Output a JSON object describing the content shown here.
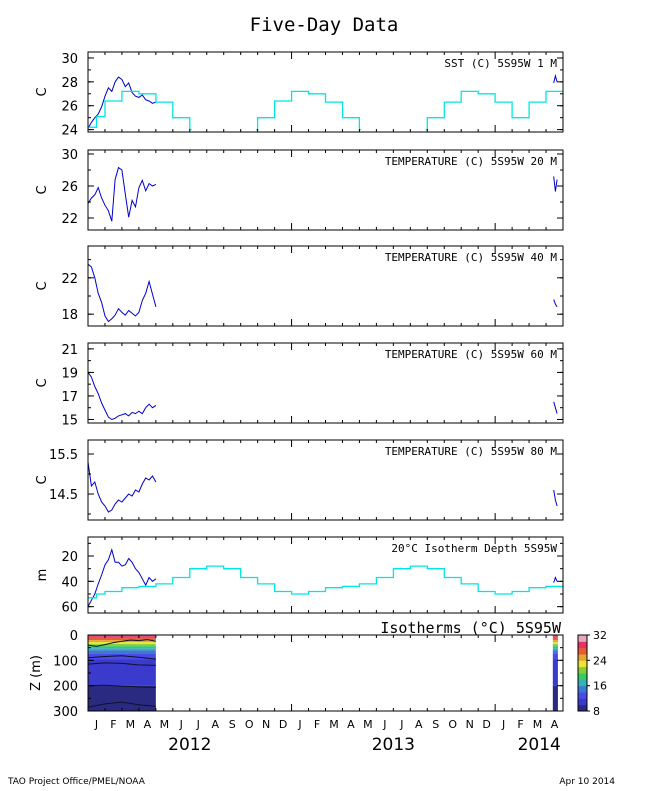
{
  "title": "Five-Day Data",
  "footer_left": "TAO Project Office/PMEL/NOAA",
  "footer_right": "Apr 10 2014",
  "colors": {
    "obs": "#0000cc",
    "clim": "#00e5e5"
  },
  "months": [
    "J",
    "F",
    "M",
    "A",
    "M",
    "J",
    "J",
    "A",
    "S",
    "O",
    "N",
    "D",
    "J",
    "F",
    "M",
    "A",
    "M",
    "J",
    "J",
    "A",
    "S",
    "O",
    "N",
    "D",
    "J",
    "F",
    "M",
    "A"
  ],
  "years": [
    "2012",
    "2013",
    "2014"
  ],
  "chart_data": [
    {
      "type": "line",
      "label": "SST (C)  5S95W  1 M",
      "ylabel": "C",
      "yticks": [
        24,
        26,
        28,
        30
      ],
      "ylim": [
        23.8,
        30.5
      ],
      "x_unit": "months since Jan 2012",
      "series": [
        {
          "name": "obs",
          "x": [
            0,
            0.2,
            0.4,
            0.6,
            0.8,
            1.0,
            1.2,
            1.4,
            1.6,
            1.8,
            2.0,
            2.2,
            2.4,
            2.6,
            2.8,
            3.0,
            3.2,
            3.4,
            3.6,
            3.8,
            4.0
          ],
          "values": [
            24.1,
            24.6,
            25.0,
            25.3,
            25.9,
            26.8,
            27.5,
            27.2,
            28.0,
            28.4,
            28.2,
            27.6,
            27.9,
            27.1,
            26.8,
            26.7,
            26.9,
            26.5,
            26.4,
            26.2,
            26.3
          ]
        },
        {
          "name": "obs",
          "x": [
            27.45,
            27.55,
            27.65
          ],
          "values": [
            27.9,
            28.5,
            28.0
          ]
        },
        {
          "name": "clim",
          "x": [
            0,
            0.5,
            0.5,
            1,
            1,
            2,
            2,
            3,
            3,
            4,
            4,
            5,
            5,
            6,
            6,
            6.1
          ],
          "values": [
            24.2,
            24.2,
            25.1,
            25.1,
            26.4,
            26.4,
            27.2,
            27.2,
            27.0,
            27.0,
            26.3,
            26.3,
            25.0,
            25.0,
            24.0,
            24.0
          ]
        },
        {
          "name": "clim",
          "x": [
            9.9,
            10,
            10,
            11,
            11,
            12,
            12,
            13,
            13,
            14,
            14,
            15,
            15,
            16,
            16,
            16.1
          ],
          "values": [
            24.0,
            24.0,
            25.0,
            25.0,
            26.4,
            26.4,
            27.2,
            27.2,
            27.0,
            27.0,
            26.3,
            26.3,
            25.0,
            25.0,
            24.0,
            24.0
          ]
        },
        {
          "name": "clim",
          "x": [
            19.9,
            20,
            20,
            21,
            21,
            22,
            22,
            23,
            23,
            24,
            24,
            25,
            25,
            26,
            26,
            27,
            27,
            28
          ],
          "values": [
            24.0,
            24.0,
            25.0,
            25.0,
            26.3,
            26.3,
            27.2,
            27.2,
            27.0,
            27.0,
            26.3,
            26.3,
            25.0,
            25.0,
            26.3,
            26.3,
            27.2,
            27.2
          ]
        }
      ]
    },
    {
      "type": "line",
      "label": "TEMPERATURE (C)  5S95W  20 M",
      "ylabel": "C",
      "yticks": [
        22,
        26,
        30
      ],
      "ylim": [
        20.5,
        30.5
      ],
      "series": [
        {
          "name": "obs",
          "x": [
            0,
            0.2,
            0.4,
            0.6,
            0.8,
            1.0,
            1.2,
            1.4,
            1.6,
            1.8,
            2.0,
            2.2,
            2.4,
            2.6,
            2.8,
            3.0,
            3.2,
            3.4,
            3.6,
            3.8,
            4.0
          ],
          "values": [
            23.8,
            24.5,
            24.9,
            25.8,
            24.5,
            23.6,
            22.9,
            21.6,
            26.8,
            28.3,
            28.0,
            25.0,
            22.1,
            24.2,
            23.4,
            25.8,
            26.7,
            25.4,
            26.3,
            26.0,
            26.2
          ]
        },
        {
          "name": "obs",
          "x": [
            27.45,
            27.55,
            27.65
          ],
          "values": [
            27.2,
            25.3,
            26.8
          ]
        }
      ]
    },
    {
      "type": "line",
      "label": "TEMPERATURE (C)  5S95W  40 M",
      "ylabel": "C",
      "yticks": [
        18,
        22
      ],
      "ylim": [
        16.7,
        25.5
      ],
      "series": [
        {
          "name": "obs",
          "x": [
            0,
            0.2,
            0.4,
            0.6,
            0.8,
            1.0,
            1.2,
            1.4,
            1.6,
            1.8,
            2.0,
            2.2,
            2.4,
            2.6,
            2.8,
            3.0,
            3.2,
            3.4,
            3.6,
            3.8,
            4.0
          ],
          "values": [
            23.5,
            23.2,
            22.0,
            20.3,
            19.3,
            17.8,
            17.2,
            17.5,
            17.9,
            18.6,
            18.2,
            17.9,
            18.4,
            18.1,
            17.8,
            18.2,
            19.5,
            20.3,
            21.6,
            20.2,
            18.8
          ]
        },
        {
          "name": "obs",
          "x": [
            27.45,
            27.55,
            27.65
          ],
          "values": [
            19.6,
            19.1,
            18.8
          ]
        }
      ]
    },
    {
      "type": "line",
      "label": "TEMPERATURE (C)  5S95W  60 M",
      "ylabel": "C",
      "yticks": [
        15,
        17,
        19,
        21
      ],
      "ylim": [
        14.7,
        21.5
      ],
      "series": [
        {
          "name": "obs",
          "x": [
            0,
            0.2,
            0.4,
            0.6,
            0.8,
            1.0,
            1.2,
            1.4,
            1.6,
            1.8,
            2.0,
            2.2,
            2.4,
            2.6,
            2.8,
            3.0,
            3.2,
            3.4,
            3.6,
            3.8,
            4.0
          ],
          "values": [
            19.0,
            18.6,
            17.8,
            17.2,
            16.4,
            15.8,
            15.2,
            15.0,
            15.1,
            15.3,
            15.4,
            15.5,
            15.3,
            15.6,
            15.5,
            15.7,
            15.5,
            16.0,
            16.3,
            16.0,
            16.2
          ]
        },
        {
          "name": "obs",
          "x": [
            27.45,
            27.55,
            27.65
          ],
          "values": [
            16.5,
            16.0,
            15.5
          ]
        }
      ]
    },
    {
      "type": "line",
      "label": "TEMPERATURE (C)  5S95W  80 M",
      "ylabel": "C",
      "yticks": [
        14.5,
        15.5
      ],
      "ylim": [
        13.85,
        15.85
      ],
      "series": [
        {
          "name": "obs",
          "x": [
            0,
            0.2,
            0.4,
            0.6,
            0.8,
            1.0,
            1.2,
            1.4,
            1.6,
            1.8,
            2.0,
            2.2,
            2.4,
            2.6,
            2.8,
            3.0,
            3.2,
            3.4,
            3.6,
            3.8,
            4.0
          ],
          "values": [
            15.3,
            14.7,
            14.8,
            14.5,
            14.3,
            14.2,
            14.05,
            14.1,
            14.25,
            14.35,
            14.3,
            14.4,
            14.5,
            14.45,
            14.6,
            14.55,
            14.75,
            14.9,
            14.85,
            14.95,
            14.8
          ]
        },
        {
          "name": "obs",
          "x": [
            27.45,
            27.55,
            27.65
          ],
          "values": [
            14.6,
            14.35,
            14.2
          ]
        }
      ]
    },
    {
      "type": "line",
      "label": "20°C Isotherm Depth  5S95W",
      "ylabel": "m",
      "yticks": [
        20,
        40,
        60
      ],
      "ylim": [
        65,
        5
      ],
      "series": [
        {
          "name": "obs",
          "x": [
            0,
            0.2,
            0.4,
            0.6,
            0.8,
            1.0,
            1.2,
            1.4,
            1.6,
            1.8,
            2.0,
            2.2,
            2.4,
            2.6,
            2.8,
            3.0,
            3.2,
            3.4,
            3.6,
            3.8,
            4.0
          ],
          "values": [
            60,
            55,
            50,
            42,
            35,
            27,
            23,
            15,
            25,
            25,
            28,
            27,
            22,
            25,
            30,
            33,
            38,
            43,
            37,
            40,
            38
          ]
        },
        {
          "name": "obs",
          "x": [
            27.45,
            27.55,
            27.65
          ],
          "values": [
            41,
            37,
            40
          ]
        },
        {
          "name": "clim",
          "x": [
            0,
            0.5,
            0.5,
            1,
            1,
            2,
            2,
            3,
            3,
            4,
            4,
            5,
            5,
            6,
            6,
            7,
            7,
            8,
            8,
            9,
            9,
            10,
            10,
            11,
            11,
            12,
            12,
            13,
            13,
            14,
            14,
            15,
            15,
            16,
            16,
            17,
            17,
            18,
            18,
            19,
            19,
            20,
            20,
            21,
            21,
            22,
            22,
            23,
            23,
            24,
            24,
            25,
            25,
            26,
            26,
            27,
            27,
            28
          ],
          "values": [
            53,
            53,
            50,
            50,
            48,
            48,
            45,
            45,
            44,
            44,
            42,
            42,
            37,
            37,
            30,
            30,
            28,
            28,
            30,
            30,
            37,
            37,
            42,
            42,
            48,
            48,
            50,
            50,
            48,
            48,
            45,
            45,
            44,
            44,
            42,
            42,
            37,
            37,
            30,
            30,
            28,
            28,
            30,
            30,
            37,
            37,
            42,
            42,
            48,
            48,
            50,
            50,
            48,
            48,
            45,
            45,
            44,
            44
          ]
        }
      ]
    },
    {
      "type": "heatmap",
      "label": "Isotherms (°C) 5S95W",
      "ylabel": "Z (m)",
      "yticks": [
        0,
        100,
        200,
        300
      ],
      "ylim": [
        300,
        0
      ],
      "colorbar_ticks": [
        8,
        16,
        24,
        32
      ],
      "colorbar_colors": [
        "#2a2a80",
        "#3a3acc",
        "#4a4ae6",
        "#3a7ad4",
        "#33b3b3",
        "#33cc66",
        "#88cc33",
        "#e6e633",
        "#e6a633",
        "#e65c33",
        "#e63366",
        "#e6a6c0"
      ]
    }
  ]
}
